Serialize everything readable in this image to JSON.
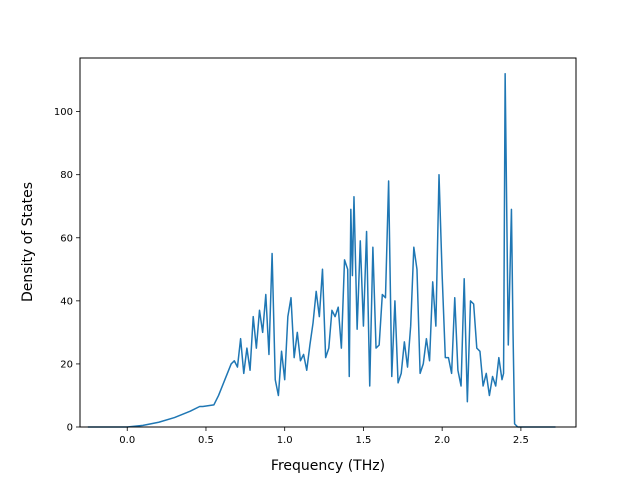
{
  "chart_data": {
    "type": "line",
    "title": "",
    "xlabel": "Frequency (THz)",
    "ylabel": "Density of States",
    "xlim": [
      -0.3,
      2.85
    ],
    "ylim": [
      0,
      117
    ],
    "xticks": [
      0.0,
      0.5,
      1.0,
      1.5,
      2.0,
      2.5
    ],
    "xtick_labels": [
      "0.0",
      "0.5",
      "1.0",
      "1.5",
      "2.0",
      "2.5"
    ],
    "yticks": [
      0,
      20,
      40,
      60,
      80,
      100
    ],
    "ytick_labels": [
      "0",
      "20",
      "40",
      "60",
      "80",
      "100"
    ],
    "grid": false,
    "legend": false,
    "series": [
      {
        "color": "#1f77b4",
        "x": [
          -0.25,
          -0.1,
          0.0,
          0.1,
          0.2,
          0.3,
          0.4,
          0.46,
          0.48,
          0.55,
          0.58,
          0.62,
          0.66,
          0.68,
          0.7,
          0.72,
          0.74,
          0.76,
          0.78,
          0.8,
          0.82,
          0.84,
          0.86,
          0.88,
          0.9,
          0.92,
          0.94,
          0.96,
          0.98,
          1.0,
          1.02,
          1.04,
          1.06,
          1.08,
          1.1,
          1.12,
          1.14,
          1.16,
          1.18,
          1.2,
          1.22,
          1.24,
          1.26,
          1.28,
          1.3,
          1.32,
          1.34,
          1.36,
          1.38,
          1.4,
          1.41,
          1.42,
          1.43,
          1.44,
          1.46,
          1.48,
          1.5,
          1.52,
          1.54,
          1.56,
          1.58,
          1.6,
          1.62,
          1.64,
          1.66,
          1.68,
          1.7,
          1.72,
          1.74,
          1.76,
          1.78,
          1.8,
          1.82,
          1.84,
          1.86,
          1.88,
          1.9,
          1.92,
          1.94,
          1.96,
          1.98,
          2.0,
          2.02,
          2.04,
          2.06,
          2.08,
          2.1,
          2.12,
          2.14,
          2.16,
          2.18,
          2.2,
          2.22,
          2.24,
          2.26,
          2.28,
          2.3,
          2.32,
          2.34,
          2.36,
          2.38,
          2.39,
          2.4,
          2.42,
          2.44,
          2.45,
          2.46,
          2.48,
          2.55,
          2.72
        ],
        "y": [
          0,
          0,
          0,
          0.5,
          1.5,
          3,
          5,
          6.5,
          6.5,
          7,
          10,
          15,
          20,
          21,
          19,
          28,
          17,
          25,
          18,
          35,
          25,
          37,
          30,
          42,
          23,
          55,
          15,
          10,
          24,
          15,
          35,
          41,
          22,
          30,
          21,
          23,
          18,
          26,
          33,
          43,
          35,
          50,
          22,
          25,
          37,
          35,
          38,
          25,
          53,
          50,
          16,
          69,
          48,
          73,
          31,
          59,
          32,
          62,
          13,
          57,
          25,
          26,
          42,
          41,
          78,
          16,
          40,
          14,
          17,
          27,
          19,
          32,
          57,
          50,
          17,
          20,
          28,
          21,
          46,
          32,
          80,
          48,
          22,
          22,
          17,
          41,
          18,
          13,
          47,
          8,
          40,
          39,
          25,
          24,
          13,
          17,
          10,
          16,
          13,
          22,
          15,
          17,
          112,
          26,
          69,
          30,
          1,
          0,
          0,
          0
        ]
      }
    ]
  }
}
